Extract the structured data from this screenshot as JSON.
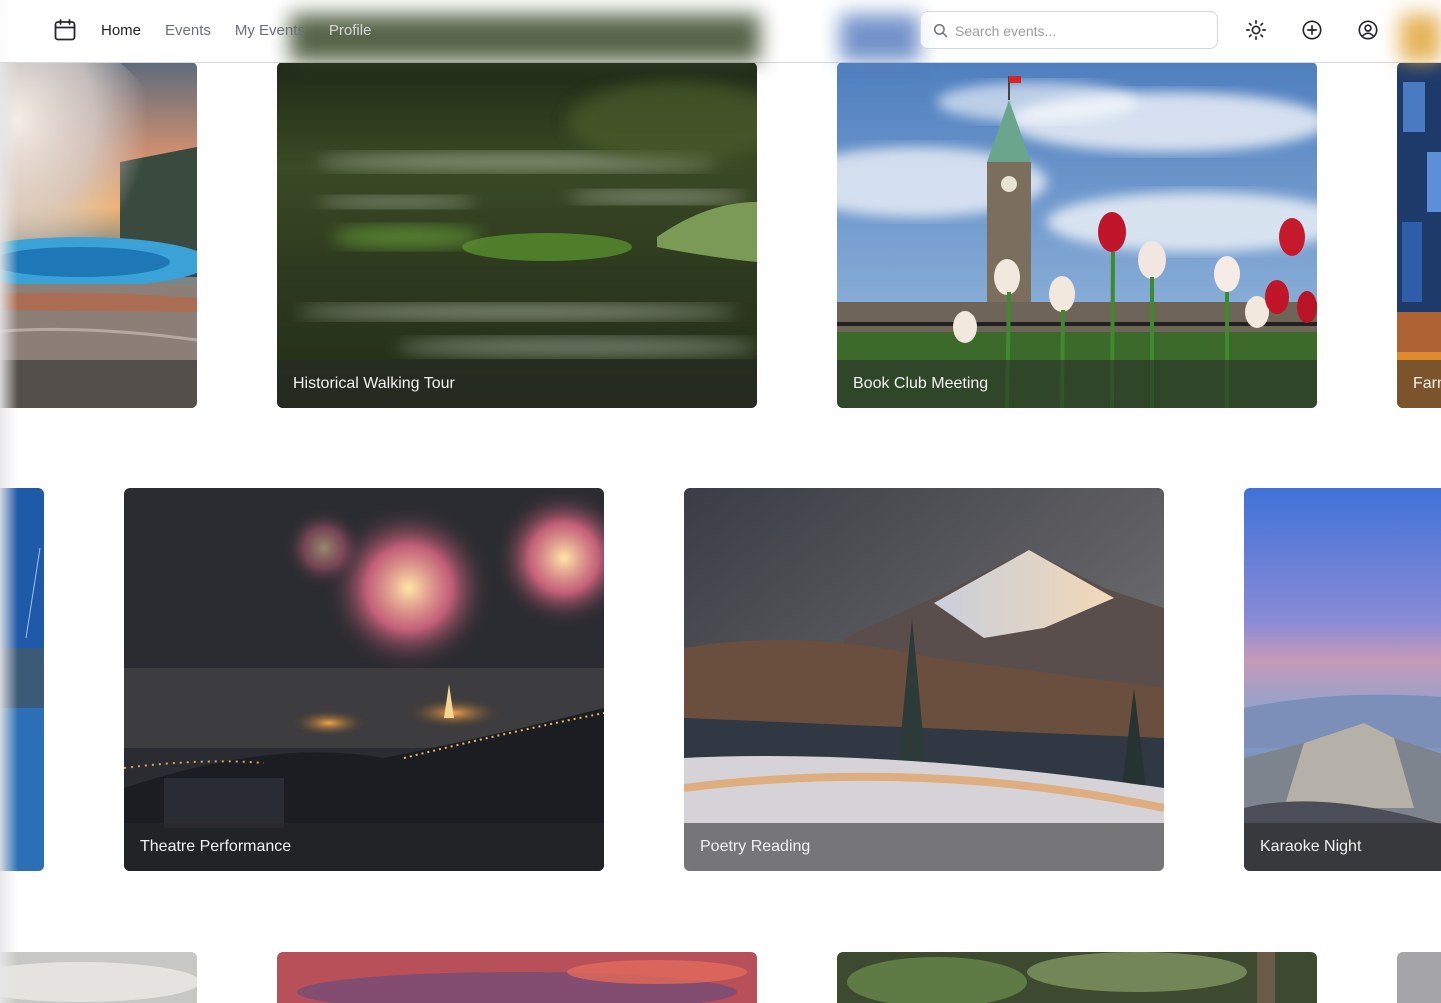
{
  "nav": {
    "links": [
      "Home",
      "Events",
      "My Events",
      "Profile"
    ],
    "search_placeholder": "Search events..."
  },
  "icons": {
    "logo": "calendar-icon",
    "search": "search-icon",
    "theme": "sun-icon",
    "create": "plus-circle-icon",
    "account": "user-circle-icon"
  },
  "events": {
    "row1": [
      "",
      "Historical Walking Tour",
      "Book Club Meeting",
      "Farm"
    ],
    "row2": [
      "",
      "Theatre Performance",
      "Poetry Reading",
      "Karaoke Night"
    ]
  },
  "colors": {
    "nav_bg": "#ffffff",
    "text_active": "#1c1f24",
    "text_muted": "#6b6f76",
    "caption_bg": "#282828"
  }
}
